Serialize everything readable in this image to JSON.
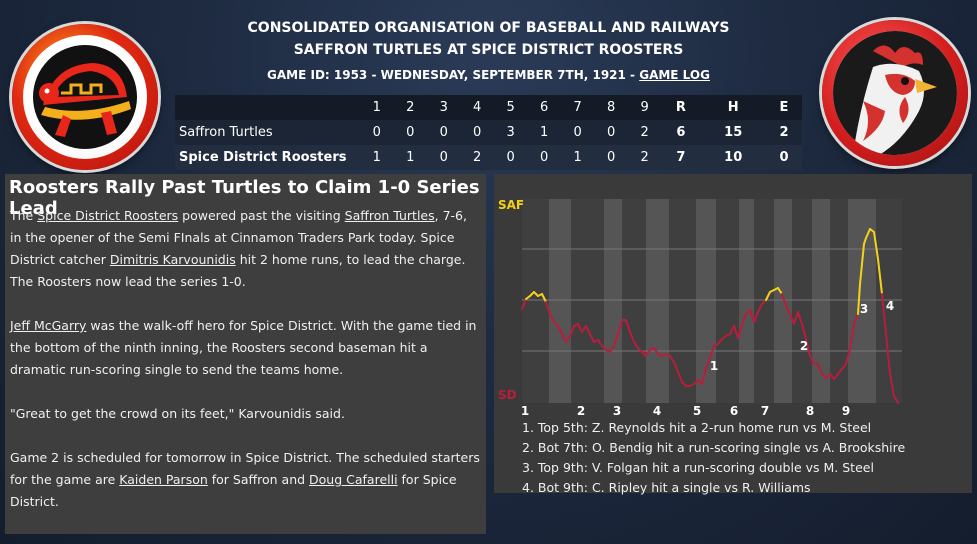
{
  "header": {
    "league": "CONSOLIDATED ORGANISATION OF BASEBALL AND RAILWAYS",
    "matchup": "SAFFRON TURTLES AT SPICE DISTRICT ROOSTERS",
    "game_info": "GAME ID: 1953 - WEDNESDAY, SEPTEMBER 7TH, 1921 - ",
    "game_log_label": "GAME LOG"
  },
  "logos": {
    "away": "turtle-logo",
    "home": "rooster-logo"
  },
  "boxscore": {
    "columns": [
      "1",
      "2",
      "3",
      "4",
      "5",
      "6",
      "7",
      "8",
      "9",
      "R",
      "H",
      "E"
    ],
    "teams": [
      {
        "name": "Saffron Turtles",
        "innings": [
          "0",
          "0",
          "0",
          "0",
          "3",
          "1",
          "0",
          "0",
          "2"
        ],
        "r": "6",
        "h": "15",
        "e": "2"
      },
      {
        "name": "Spice District Roosters",
        "innings": [
          "1",
          "1",
          "0",
          "2",
          "0",
          "0",
          "1",
          "0",
          "2"
        ],
        "r": "7",
        "h": "10",
        "e": "0"
      }
    ]
  },
  "story": {
    "headline": "Roosters Rally Past Turtles to Claim 1-0 Series Lead",
    "p1": {
      "t1": "The ",
      "home_team": "Spice District Roosters",
      "t2": " powered past the visiting ",
      "away_team": "Saffron Turtles",
      "t3": ", 7-6, in the opener of the Semi FInals at Cinnamon Traders Park today. Spice District catcher ",
      "player": "Dimitris Karvounidis",
      "t4": " hit 2 home runs, to lead the charge. The Roosters now lead the series 1-0."
    },
    "p2": {
      "player": "Jeff McGarry",
      "t1": " was the walk-off hero for Spice District. With the game tied in the bottom of the ninth inning, the Roosters second baseman hit a dramatic run-scoring single to send the teams home."
    },
    "p3": "\"Great to get the crowd on its feet,\" Karvounidis said.",
    "p4": {
      "t1": "Game 2 is scheduled for tomorrow in Spice District. The scheduled starters for the game are ",
      "p1": "Kaiden Parson",
      "t2": " for Saffron and ",
      "p2": "Doug Cafarelli",
      "t3": " for Spice District."
    }
  },
  "chart": {
    "away_label": "SAF",
    "home_label": "SD",
    "away_color": "#f5d21a",
    "home_color": "#b81e3c",
    "inning_labels": [
      "1",
      "2",
      "3",
      "4",
      "5",
      "6",
      "7",
      "8",
      "9"
    ],
    "markers": [
      "1",
      "2",
      "3",
      "4"
    ],
    "events": [
      "1. Top 5th: Z. Reynolds hit a 2-run home run vs M. Steel",
      "2. Bot 7th: O. Bendig hit a run-scoring single vs A. Brookshire",
      "3. Top 9th: V. Folgan hit a run-scoring double vs M. Steel",
      "4. Bot 9th: C. Ripley hit a single vs R. Williams"
    ]
  }
}
